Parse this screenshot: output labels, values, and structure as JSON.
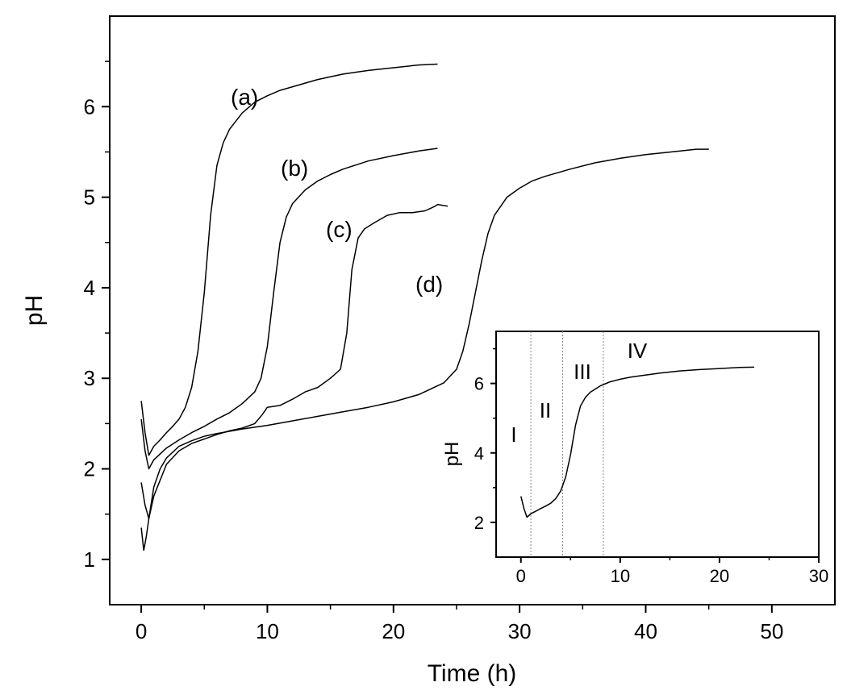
{
  "chart_data": [
    {
      "type": "line",
      "xlabel": "Time (h)",
      "ylabel": "pH",
      "xlim": [
        -2.5,
        55
      ],
      "ylim": [
        0.5,
        7.0
      ],
      "xticks": [
        0,
        10,
        20,
        30,
        40,
        50
      ],
      "yticks": [
        1,
        2,
        3,
        4,
        5,
        6
      ],
      "grid": false,
      "series": [
        {
          "name": "(a)",
          "x": [
            0,
            0.3,
            0.6,
            1,
            1.5,
            2,
            2.5,
            3,
            3.5,
            4,
            4.5,
            5,
            5.5,
            6,
            6.5,
            7,
            8,
            9,
            10,
            11,
            12,
            14,
            16,
            18,
            20,
            22,
            23.5
          ],
          "y": [
            2.75,
            2.4,
            2.15,
            2.25,
            2.32,
            2.4,
            2.47,
            2.55,
            2.68,
            2.9,
            3.3,
            3.95,
            4.8,
            5.35,
            5.6,
            5.75,
            5.93,
            6.05,
            6.12,
            6.18,
            6.22,
            6.3,
            6.36,
            6.4,
            6.43,
            6.46,
            6.47
          ]
        },
        {
          "name": "(b)",
          "x": [
            0,
            0.3,
            0.6,
            1,
            2,
            3,
            4,
            5,
            6,
            7,
            8,
            9,
            9.5,
            10,
            10.5,
            11,
            11.5,
            12,
            13,
            14,
            15,
            16,
            18,
            20,
            22,
            23.5
          ],
          "y": [
            2.55,
            2.2,
            2.0,
            2.1,
            2.23,
            2.32,
            2.4,
            2.47,
            2.55,
            2.62,
            2.72,
            2.85,
            3.0,
            3.35,
            3.95,
            4.5,
            4.78,
            4.93,
            5.08,
            5.18,
            5.25,
            5.31,
            5.4,
            5.46,
            5.51,
            5.54
          ]
        },
        {
          "name": "(c)",
          "x": [
            0,
            0.3,
            0.6,
            1,
            2,
            3,
            4,
            5,
            6,
            7,
            8,
            9,
            9.6,
            10,
            11,
            12,
            13,
            14,
            15,
            15.8,
            16.3,
            16.7,
            17.2,
            17.7,
            18.5,
            19.5,
            20.5,
            21.5,
            22.5,
            23.3,
            23.5,
            24.3
          ],
          "y": [
            1.85,
            1.6,
            1.45,
            1.7,
            2.05,
            2.2,
            2.28,
            2.33,
            2.38,
            2.42,
            2.45,
            2.5,
            2.6,
            2.68,
            2.7,
            2.77,
            2.85,
            2.9,
            3.0,
            3.1,
            3.5,
            4.2,
            4.55,
            4.65,
            4.72,
            4.8,
            4.83,
            4.83,
            4.85,
            4.9,
            4.92,
            4.9
          ]
        },
        {
          "name": "(d)",
          "x": [
            0,
            0.2,
            0.4,
            0.6,
            1,
            1.5,
            2,
            3,
            4,
            5,
            6,
            8,
            10,
            12,
            14,
            16,
            18,
            20,
            22,
            24,
            25,
            25.5,
            26,
            26.5,
            27,
            27.5,
            28,
            29,
            30,
            31,
            32,
            34,
            36,
            38,
            40,
            42,
            44,
            45
          ],
          "y": [
            1.35,
            1.1,
            1.25,
            1.45,
            1.8,
            2.0,
            2.12,
            2.25,
            2.31,
            2.36,
            2.39,
            2.44,
            2.48,
            2.53,
            2.58,
            2.63,
            2.68,
            2.74,
            2.82,
            2.95,
            3.1,
            3.3,
            3.6,
            3.95,
            4.3,
            4.6,
            4.8,
            5.0,
            5.1,
            5.18,
            5.23,
            5.31,
            5.38,
            5.43,
            5.47,
            5.5,
            5.53,
            5.53
          ]
        }
      ]
    },
    {
      "type": "line",
      "xlabel": "",
      "ylabel": "pH",
      "xlim": [
        -2.5,
        30
      ],
      "ylim": [
        1.0,
        7.5
      ],
      "xticks": [
        0,
        10,
        20,
        30
      ],
      "yticks": [
        2,
        4,
        6
      ],
      "grid": false,
      "region_boundaries_x": [
        1,
        4.2,
        8.3
      ],
      "regions": [
        "I",
        "II",
        "III",
        "IV"
      ],
      "series": [
        {
          "name": "",
          "x": [
            0,
            0.3,
            0.6,
            1,
            1.5,
            2,
            2.5,
            3,
            3.5,
            4,
            4.5,
            5,
            5.5,
            6,
            6.5,
            7,
            8,
            9,
            10,
            11,
            12,
            14,
            16,
            18,
            20,
            22,
            23.5
          ],
          "y": [
            2.75,
            2.4,
            2.15,
            2.25,
            2.32,
            2.4,
            2.47,
            2.55,
            2.68,
            2.9,
            3.3,
            3.95,
            4.8,
            5.35,
            5.6,
            5.75,
            5.93,
            6.05,
            6.12,
            6.18,
            6.22,
            6.3,
            6.36,
            6.4,
            6.43,
            6.46,
            6.47
          ]
        }
      ]
    }
  ]
}
